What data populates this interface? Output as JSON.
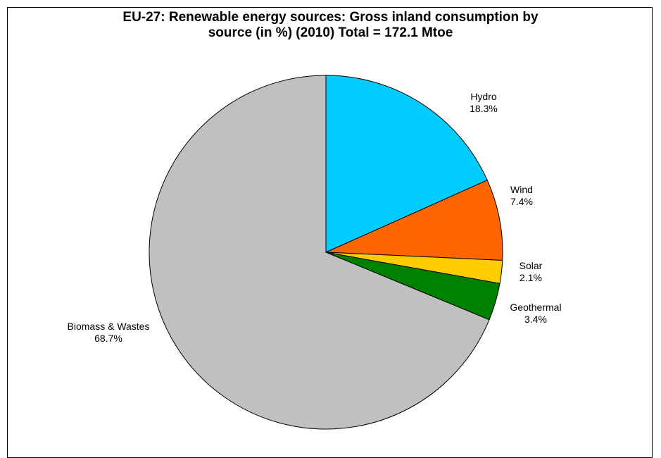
{
  "chart_data": {
    "type": "pie",
    "title_line1": "EU-27: Renewable energy sources: Gross inland consumption  by",
    "title_line2": "source (in %) (2010)  Total = 172.1 Mtoe",
    "slices": [
      {
        "name": "Hydro",
        "value": 18.3,
        "label": "18.3%",
        "color": "#00CCFF"
      },
      {
        "name": "Wind",
        "value": 7.4,
        "label": "7.4%",
        "color": "#FF6600"
      },
      {
        "name": "Solar",
        "value": 2.1,
        "label": "2.1%",
        "color": "#FFCC00"
      },
      {
        "name": "Geothermal",
        "value": 3.4,
        "label": "3.4%",
        "color": "#008000"
      },
      {
        "name": "Biomass & Wastes",
        "value": 68.7,
        "label": "68.7%",
        "color": "#C0C0C0"
      }
    ]
  }
}
